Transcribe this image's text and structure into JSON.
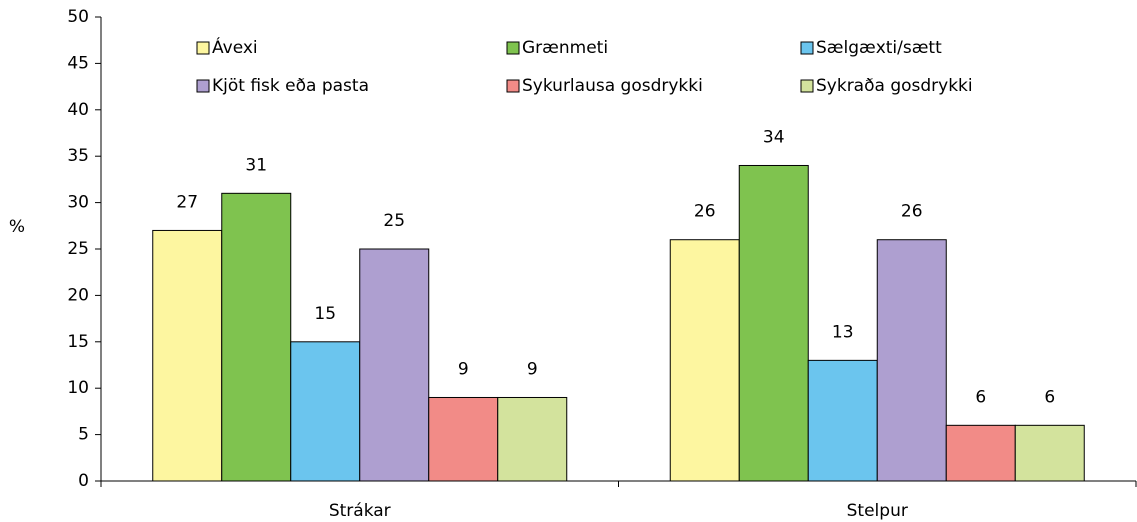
{
  "chart_data": {
    "type": "bar",
    "y_label": "%",
    "categories": [
      "Strákar",
      "Stelpur"
    ],
    "series": [
      {
        "name": "Ávexi",
        "color": "#fdf6a0",
        "values": [
          27,
          26
        ]
      },
      {
        "name": "Grænmeti",
        "color": "#7fc34f",
        "values": [
          31,
          34
        ]
      },
      {
        "name": "Sælgæxti/sætt",
        "color": "#6bc5ee",
        "values": [
          15,
          13
        ]
      },
      {
        "name": "Kjöt fisk eða pasta",
        "color": "#ae9fd0",
        "values": [
          25,
          26
        ]
      },
      {
        "name": "Sykurlausa gosdrykki",
        "color": "#f28b87",
        "values": [
          9,
          6
        ]
      },
      {
        "name": "Sykraða gosdrykki",
        "color": "#d3e39d",
        "values": [
          9,
          6
        ]
      }
    ],
    "ylim": [
      0,
      50
    ],
    "yticks": [
      0,
      5,
      10,
      15,
      20,
      25,
      30,
      35,
      40,
      45,
      50
    ]
  }
}
